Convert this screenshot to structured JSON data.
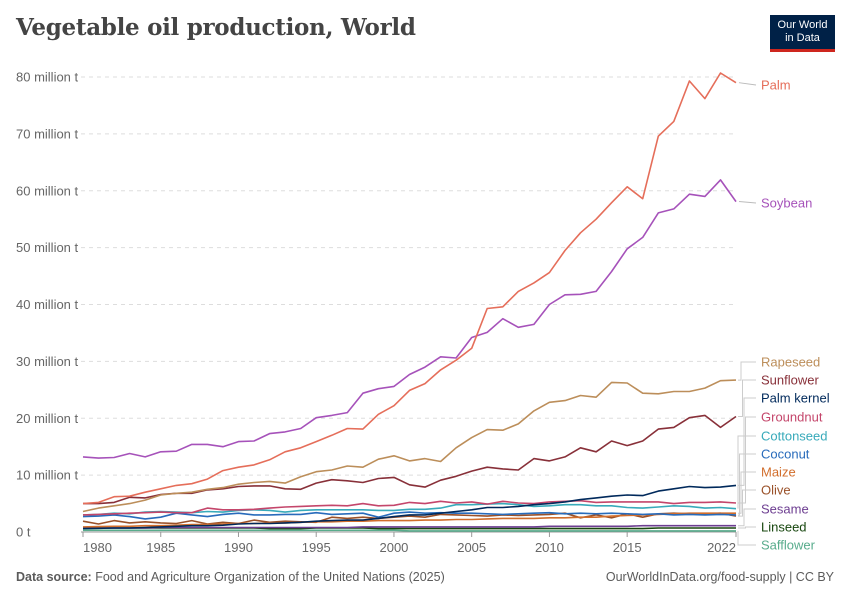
{
  "title": "Vegetable oil production, World",
  "logo": {
    "line1": "Our World",
    "line2": "in Data"
  },
  "footer": {
    "source_label": "Data source:",
    "source_text": "Food and Agriculture Organization of the United Nations (2025)",
    "link": "OurWorldInData.org/food-supply | CC BY"
  },
  "chart_data": {
    "type": "line",
    "title": "Vegetable oil production, World",
    "xlim": [
      1980,
      2022
    ],
    "ylim": [
      0,
      80
    ],
    "grid": true,
    "legend": "right",
    "x_ticks": [
      "1980",
      "1985",
      "1990",
      "1995",
      "2000",
      "2005",
      "2010",
      "2015",
      "2022"
    ],
    "y_ticks": [
      "0 t",
      "10 million t",
      "20 million t",
      "30 million t",
      "40 million t",
      "50 million t",
      "60 million t",
      "70 million t",
      "80 million t"
    ],
    "y_unit": "million t",
    "x_start": 1980,
    "series": [
      {
        "name": "Palm",
        "color": "#e56e5a",
        "values": [
          5.0,
          5.2,
          6.2,
          6.3,
          7.0,
          7.6,
          8.2,
          8.5,
          9.3,
          10.8,
          11.4,
          11.8,
          12.7,
          14.1,
          14.8,
          15.9,
          17.0,
          18.2,
          18.1,
          20.7,
          22.2,
          24.9,
          26.1,
          28.5,
          30.2,
          32.3,
          39.3,
          39.6,
          42.3,
          43.8,
          45.6,
          49.5,
          52.6,
          55.0,
          57.9,
          60.7,
          58.6,
          69.6,
          72.2,
          79.3,
          76.2,
          80.7,
          79.0
        ]
      },
      {
        "name": "Soybean",
        "color": "#a652ba",
        "values": [
          13.2,
          13.0,
          13.1,
          13.8,
          13.2,
          14.1,
          14.2,
          15.4,
          15.4,
          15.0,
          15.9,
          16.0,
          17.3,
          17.6,
          18.2,
          20.1,
          20.5,
          21.0,
          24.4,
          25.2,
          25.6,
          27.7,
          29.0,
          30.8,
          30.6,
          34.2,
          35.1,
          37.5,
          36.0,
          36.5,
          40.0,
          41.7,
          41.8,
          42.3,
          45.8,
          49.8,
          51.8,
          56.1,
          56.8,
          59.4,
          59.0,
          61.9,
          58.1
        ]
      },
      {
        "name": "Rapeseed",
        "color": "#bc8e5a",
        "values": [
          3.6,
          4.2,
          4.6,
          5.0,
          5.6,
          6.5,
          6.8,
          7.0,
          7.5,
          7.8,
          8.4,
          8.7,
          8.9,
          8.6,
          9.7,
          10.6,
          10.9,
          11.6,
          11.4,
          12.8,
          13.4,
          12.5,
          12.9,
          12.4,
          14.8,
          16.6,
          18.0,
          17.9,
          19.0,
          21.3,
          22.8,
          23.1,
          24.0,
          23.7,
          26.3,
          26.2,
          24.4,
          24.3,
          24.7,
          24.7,
          25.3,
          26.6,
          26.7
        ]
      },
      {
        "name": "Sunflower",
        "color": "#883039",
        "values": [
          5.0,
          5.0,
          5.2,
          6.1,
          6.0,
          6.6,
          6.8,
          6.8,
          7.4,
          7.6,
          8.0,
          8.1,
          8.1,
          7.6,
          7.5,
          8.6,
          9.2,
          9.0,
          8.7,
          9.4,
          9.6,
          8.3,
          7.9,
          9.1,
          9.8,
          10.7,
          11.4,
          11.1,
          10.9,
          12.9,
          12.5,
          13.2,
          14.8,
          14.1,
          16.0,
          15.2,
          16.0,
          18.1,
          18.4,
          20.1,
          20.5,
          18.4,
          20.3
        ]
      },
      {
        "name": "Palm kernel",
        "color": "#00295b",
        "values": [
          0.6,
          0.65,
          0.7,
          0.7,
          0.8,
          0.9,
          1.0,
          1.1,
          1.1,
          1.2,
          1.4,
          1.5,
          1.5,
          1.6,
          1.7,
          1.9,
          2.0,
          2.1,
          2.1,
          2.4,
          2.7,
          3.0,
          3.0,
          3.3,
          3.6,
          3.9,
          4.3,
          4.3,
          4.5,
          4.8,
          5.0,
          5.3,
          5.7,
          6.0,
          6.3,
          6.5,
          6.4,
          7.2,
          7.6,
          8.0,
          7.8,
          7.9,
          8.2
        ]
      },
      {
        "name": "Groundnut",
        "color": "#c4466b",
        "values": [
          3.0,
          3.1,
          3.2,
          3.3,
          3.4,
          3.5,
          3.4,
          3.4,
          4.2,
          3.9,
          3.9,
          4.0,
          4.2,
          4.4,
          4.5,
          4.6,
          4.7,
          4.6,
          5.0,
          4.6,
          4.7,
          5.2,
          5.0,
          5.4,
          5.1,
          5.3,
          4.9,
          5.4,
          5.1,
          5.0,
          5.3,
          5.4,
          5.5,
          5.2,
          5.3,
          5.3,
          5.3,
          5.3,
          5.0,
          5.2,
          5.2,
          5.3,
          5.1
        ]
      },
      {
        "name": "Cottonseed",
        "color": "#38aaba",
        "values": [
          3.0,
          3.1,
          3.3,
          3.2,
          3.5,
          3.6,
          3.5,
          3.4,
          3.6,
          3.5,
          3.8,
          3.9,
          3.8,
          3.5,
          3.8,
          3.9,
          3.9,
          3.9,
          3.9,
          3.8,
          3.8,
          4.0,
          4.0,
          4.2,
          4.8,
          4.8,
          4.9,
          5.0,
          4.8,
          4.5,
          4.6,
          4.8,
          4.8,
          4.6,
          4.6,
          4.3,
          4.2,
          4.4,
          4.6,
          4.5,
          4.2,
          4.3,
          4.1
        ]
      },
      {
        "name": "Coconut",
        "color": "#286bbb",
        "values": [
          2.7,
          2.8,
          3.0,
          2.7,
          2.3,
          2.6,
          3.3,
          3.0,
          2.7,
          3.1,
          3.3,
          3.0,
          3.0,
          3.1,
          3.1,
          3.4,
          3.1,
          3.2,
          3.3,
          2.6,
          3.3,
          3.5,
          3.3,
          3.4,
          3.3,
          3.3,
          3.2,
          3.1,
          3.2,
          3.3,
          3.4,
          3.2,
          3.3,
          3.2,
          3.3,
          3.2,
          3.1,
          3.2,
          3.0,
          3.1,
          3.0,
          3.1,
          3.0
        ]
      },
      {
        "name": "Maize",
        "color": "#d26e2c",
        "values": [
          0.9,
          0.95,
          1.0,
          1.0,
          1.1,
          1.1,
          1.2,
          1.3,
          1.3,
          1.4,
          1.5,
          1.5,
          1.6,
          1.6,
          1.7,
          1.8,
          1.8,
          1.9,
          1.9,
          2.0,
          2.0,
          2.0,
          2.1,
          2.1,
          2.2,
          2.2,
          2.3,
          2.4,
          2.4,
          2.4,
          2.5,
          2.5,
          2.6,
          2.6,
          2.8,
          2.9,
          3.0,
          3.1,
          3.2,
          3.3,
          3.3,
          3.3,
          3.3
        ]
      },
      {
        "name": "Olive",
        "color": "#9a5129",
        "values": [
          1.9,
          1.4,
          2.0,
          1.6,
          1.8,
          1.6,
          1.5,
          2.0,
          1.4,
          1.7,
          1.5,
          2.1,
          1.7,
          1.9,
          1.8,
          1.7,
          2.6,
          2.4,
          2.6,
          2.4,
          2.6,
          2.8,
          2.6,
          3.1,
          3.0,
          2.9,
          2.8,
          3.0,
          2.9,
          3.0,
          3.1,
          3.3,
          2.5,
          3.0,
          2.5,
          3.2,
          2.6,
          3.2,
          3.3,
          3.2,
          3.2,
          3.3,
          2.8
        ]
      },
      {
        "name": "Sesame",
        "color": "#6d3e91",
        "values": [
          0.7,
          0.7,
          0.7,
          0.7,
          0.7,
          0.8,
          0.8,
          0.8,
          0.8,
          0.8,
          0.8,
          0.8,
          0.8,
          0.8,
          0.8,
          0.8,
          0.8,
          0.8,
          0.9,
          0.9,
          0.9,
          0.9,
          0.9,
          0.9,
          0.9,
          0.9,
          0.9,
          0.9,
          0.9,
          0.9,
          1.0,
          1.0,
          1.0,
          1.0,
          1.0,
          1.0,
          1.1,
          1.1,
          1.1,
          1.1,
          1.1,
          1.1,
          1.1
        ]
      },
      {
        "name": "Linseed",
        "color": "#18470f",
        "values": [
          0.7,
          0.7,
          0.7,
          0.7,
          0.7,
          0.7,
          0.7,
          0.7,
          0.7,
          0.7,
          0.7,
          0.7,
          0.6,
          0.6,
          0.6,
          0.7,
          0.7,
          0.7,
          0.7,
          0.6,
          0.6,
          0.6,
          0.6,
          0.6,
          0.6,
          0.6,
          0.6,
          0.6,
          0.6,
          0.6,
          0.6,
          0.6,
          0.6,
          0.6,
          0.6,
          0.6,
          0.6,
          0.7,
          0.7,
          0.7,
          0.7,
          0.7,
          0.7
        ]
      },
      {
        "name": "Safflower",
        "color": "#58ac8c",
        "values": [
          0.3,
          0.3,
          0.3,
          0.3,
          0.3,
          0.3,
          0.3,
          0.3,
          0.3,
          0.3,
          0.3,
          0.3,
          0.3,
          0.3,
          0.3,
          0.3,
          0.3,
          0.3,
          0.3,
          0.3,
          0.3,
          0.2,
          0.2,
          0.2,
          0.2,
          0.2,
          0.2,
          0.2,
          0.2,
          0.2,
          0.2,
          0.2,
          0.2,
          0.2,
          0.2,
          0.2,
          0.2,
          0.2,
          0.2,
          0.2,
          0.2,
          0.2,
          0.2
        ]
      }
    ]
  }
}
